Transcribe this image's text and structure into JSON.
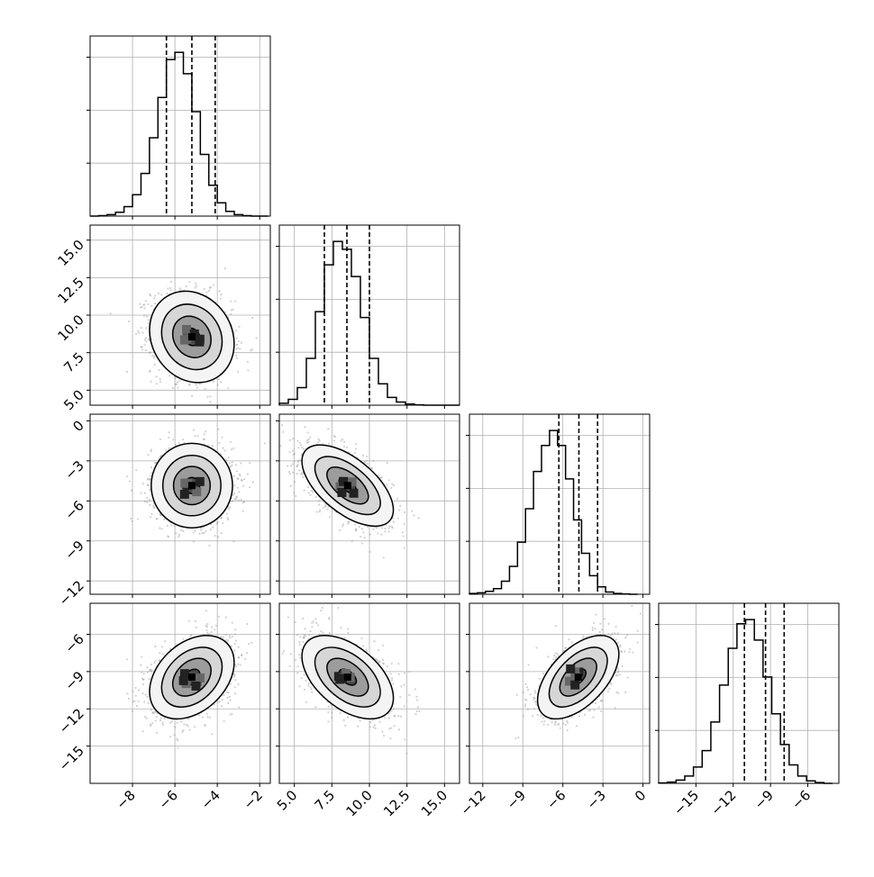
{
  "chart_data": {
    "type": "corner",
    "title": "",
    "grid": true,
    "params": [
      {
        "index": 0,
        "range": [
          -10,
          -1.5
        ],
        "ticks": [
          -8,
          -6,
          -4,
          -2
        ],
        "tick_labels": [
          "−8",
          "−6",
          "−4",
          "−2"
        ],
        "quantiles": [
          -6.4,
          -5.2,
          -4.1
        ],
        "mean": -5.2,
        "sd": 0.95
      },
      {
        "index": 1,
        "range": [
          4,
          16
        ],
        "ticks": [
          5.0,
          7.5,
          10.0,
          12.5,
          15.0
        ],
        "tick_labels": [
          "5.0",
          "7.5",
          "10.0",
          "12.5",
          "15.0"
        ],
        "quantiles": [
          7.0,
          8.5,
          10.0
        ],
        "mean": 8.55,
        "sd": 1.45
      },
      {
        "index": 2,
        "range": [
          -13,
          0.5
        ],
        "ticks": [
          -12,
          -9,
          -6,
          -3,
          0
        ],
        "tick_labels": [
          "−12",
          "−9",
          "−6",
          "−3",
          "0"
        ],
        "quantiles": [
          -6.3,
          -4.8,
          -3.4
        ],
        "mean": -4.85,
        "sd": 1.45
      },
      {
        "index": 3,
        "range": [
          -18,
          -3.5
        ],
        "ticks": [
          -15,
          -12,
          -9,
          -6
        ],
        "tick_labels": [
          "−15",
          "−12",
          "−9",
          "−6"
        ],
        "quantiles": [
          -11.1,
          -9.4,
          -7.9
        ],
        "mean": -9.45,
        "sd": 1.6
      }
    ],
    "histograms": [
      {
        "param": 0,
        "bin_edges": [
          -10.0,
          -9.6,
          -9.2,
          -8.8,
          -8.4,
          -8.0,
          -7.6,
          -7.2,
          -6.8,
          -6.4,
          -6.0,
          -5.6,
          -5.2,
          -4.8,
          -4.4,
          -4.0,
          -3.6,
          -3.2,
          -2.8,
          -2.4,
          -2.0,
          -1.6
        ],
        "counts": [
          0,
          1,
          3,
          8,
          20,
          45,
          90,
          165,
          250,
          330,
          345,
          300,
          220,
          130,
          65,
          28,
          10,
          3,
          1,
          0,
          0
        ],
        "max_count": 345
      },
      {
        "param": 1,
        "bin_edges": [
          4.0,
          4.6,
          5.2,
          5.8,
          6.4,
          7.0,
          7.6,
          8.2,
          8.8,
          9.4,
          10.0,
          10.6,
          11.2,
          11.8,
          12.4,
          13.0,
          13.6,
          14.2,
          14.8,
          15.4,
          16.0
        ],
        "counts": [
          5,
          15,
          45,
          120,
          240,
          360,
          420,
          400,
          330,
          225,
          120,
          55,
          20,
          8,
          3,
          1,
          0,
          0,
          0,
          0
        ],
        "max_count": 420
      },
      {
        "param": 2,
        "bin_edges": [
          -13.0,
          -12.4,
          -11.8,
          -11.2,
          -10.6,
          -10.0,
          -9.4,
          -8.8,
          -8.2,
          -7.6,
          -7.0,
          -6.4,
          -5.8,
          -5.2,
          -4.6,
          -4.0,
          -3.4,
          -2.8,
          -2.2,
          -1.6,
          -1.0,
          -0.4
        ],
        "counts": [
          2,
          4,
          8,
          15,
          35,
          75,
          140,
          230,
          330,
          400,
          440,
          400,
          310,
          200,
          110,
          50,
          20,
          6,
          2,
          1,
          0
        ],
        "max_count": 440
      },
      {
        "param": 3,
        "bin_edges": [
          -18.0,
          -17.3,
          -16.6,
          -15.9,
          -15.2,
          -14.5,
          -13.8,
          -13.1,
          -12.4,
          -11.7,
          -11.0,
          -10.3,
          -9.6,
          -8.9,
          -8.2,
          -7.5,
          -6.8,
          -6.1,
          -5.4,
          -4.7,
          -4.0
        ],
        "counts": [
          1,
          3,
          8,
          18,
          40,
          80,
          150,
          240,
          330,
          390,
          400,
          350,
          260,
          170,
          95,
          45,
          18,
          6,
          2,
          0
        ],
        "max_count": 400
      }
    ],
    "pairs": [
      {
        "row": 1,
        "col": 0,
        "corr": -0.15
      },
      {
        "row": 2,
        "col": 0,
        "corr": 0.0
      },
      {
        "row": 2,
        "col": 1,
        "corr": -0.6
      },
      {
        "row": 3,
        "col": 0,
        "corr": 0.35
      },
      {
        "row": 3,
        "col": 1,
        "corr": -0.5
      },
      {
        "row": 3,
        "col": 2,
        "corr": 0.55
      }
    ]
  }
}
